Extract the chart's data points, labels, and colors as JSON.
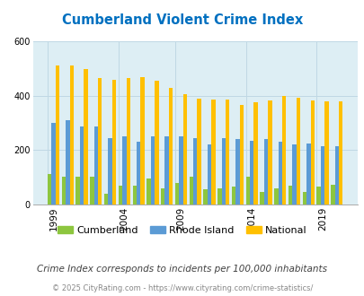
{
  "title": "Cumberland Violent Crime Index",
  "subtitle": "Crime Index corresponds to incidents per 100,000 inhabitants",
  "footer": "© 2025 CityRating.com - https://www.cityrating.com/crime-statistics/",
  "years": [
    1999,
    2000,
    2001,
    2002,
    2003,
    2004,
    2005,
    2007,
    2008,
    2009,
    2010,
    2011,
    2012,
    2013,
    2014,
    2015,
    2016,
    2017,
    2018,
    2019,
    2020
  ],
  "cumberland": [
    110,
    103,
    103,
    103,
    38,
    70,
    70,
    95,
    60,
    80,
    103,
    55,
    60,
    65,
    103,
    45,
    60,
    70,
    45,
    65,
    72
  ],
  "rhode_island": [
    300,
    310,
    285,
    285,
    245,
    250,
    230,
    250,
    250,
    250,
    245,
    220,
    245,
    240,
    235,
    240,
    230,
    220,
    225,
    215,
    215
  ],
  "national": [
    510,
    510,
    497,
    465,
    460,
    465,
    470,
    455,
    428,
    404,
    390,
    387,
    387,
    365,
    375,
    381,
    398,
    394,
    381,
    379,
    380
  ],
  "ylim": [
    0,
    600
  ],
  "yticks": [
    0,
    200,
    400,
    600
  ],
  "bg_color": "#ddeef4",
  "cumberland_color": "#8dc63f",
  "rhode_island_color": "#5b9bd5",
  "national_color": "#ffc000",
  "title_color": "#0070c0",
  "subtitle_color": "#404040",
  "footer_color": "#888888",
  "xlabel_tick_years": [
    1999,
    2004,
    2009,
    2014,
    2019
  ],
  "grid_color": "#c0d8e4"
}
